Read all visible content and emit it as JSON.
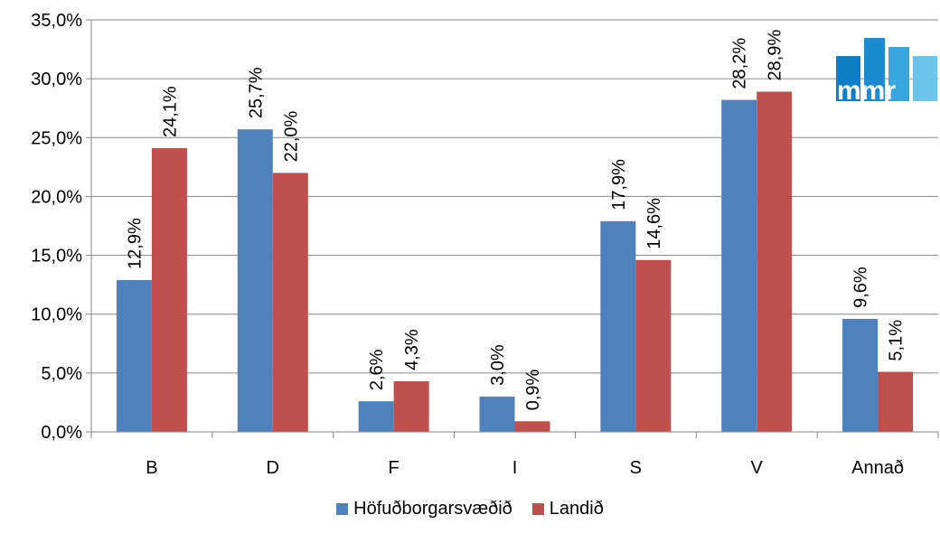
{
  "colors": {
    "series1": "#4F81BD",
    "series2": "#C0504D",
    "logo": "#0088CC",
    "axis": "#868686",
    "grid": "#868686"
  },
  "logo": {
    "text": "mmr"
  },
  "chart_data": {
    "type": "bar",
    "categories": [
      "B",
      "D",
      "F",
      "I",
      "S",
      "V",
      "Annað"
    ],
    "series": [
      {
        "name": "Höfuðborgarsvæðið",
        "values": [
          12.9,
          25.7,
          2.6,
          3.0,
          17.9,
          28.2,
          9.6
        ],
        "labels": [
          "12,9%",
          "25,7%",
          "2,6%",
          "3,0%",
          "17,9%",
          "28,2%",
          "9,6%"
        ]
      },
      {
        "name": "Landið",
        "values": [
          24.1,
          22.0,
          4.3,
          0.9,
          14.6,
          28.9,
          5.1
        ],
        "labels": [
          "24,1%",
          "22,0%",
          "4,3%",
          "0,9%",
          "14,6%",
          "28,9%",
          "5,1%"
        ]
      }
    ],
    "ylim": [
      0,
      35
    ],
    "yticks": [
      0,
      5,
      10,
      15,
      20,
      25,
      30,
      35
    ],
    "ytick_labels": [
      "0,0%",
      "5,0%",
      "10,0%",
      "15,0%",
      "20,0%",
      "25,0%",
      "30,0%",
      "35,0%"
    ],
    "grid": true,
    "legend_position": "bottom"
  }
}
